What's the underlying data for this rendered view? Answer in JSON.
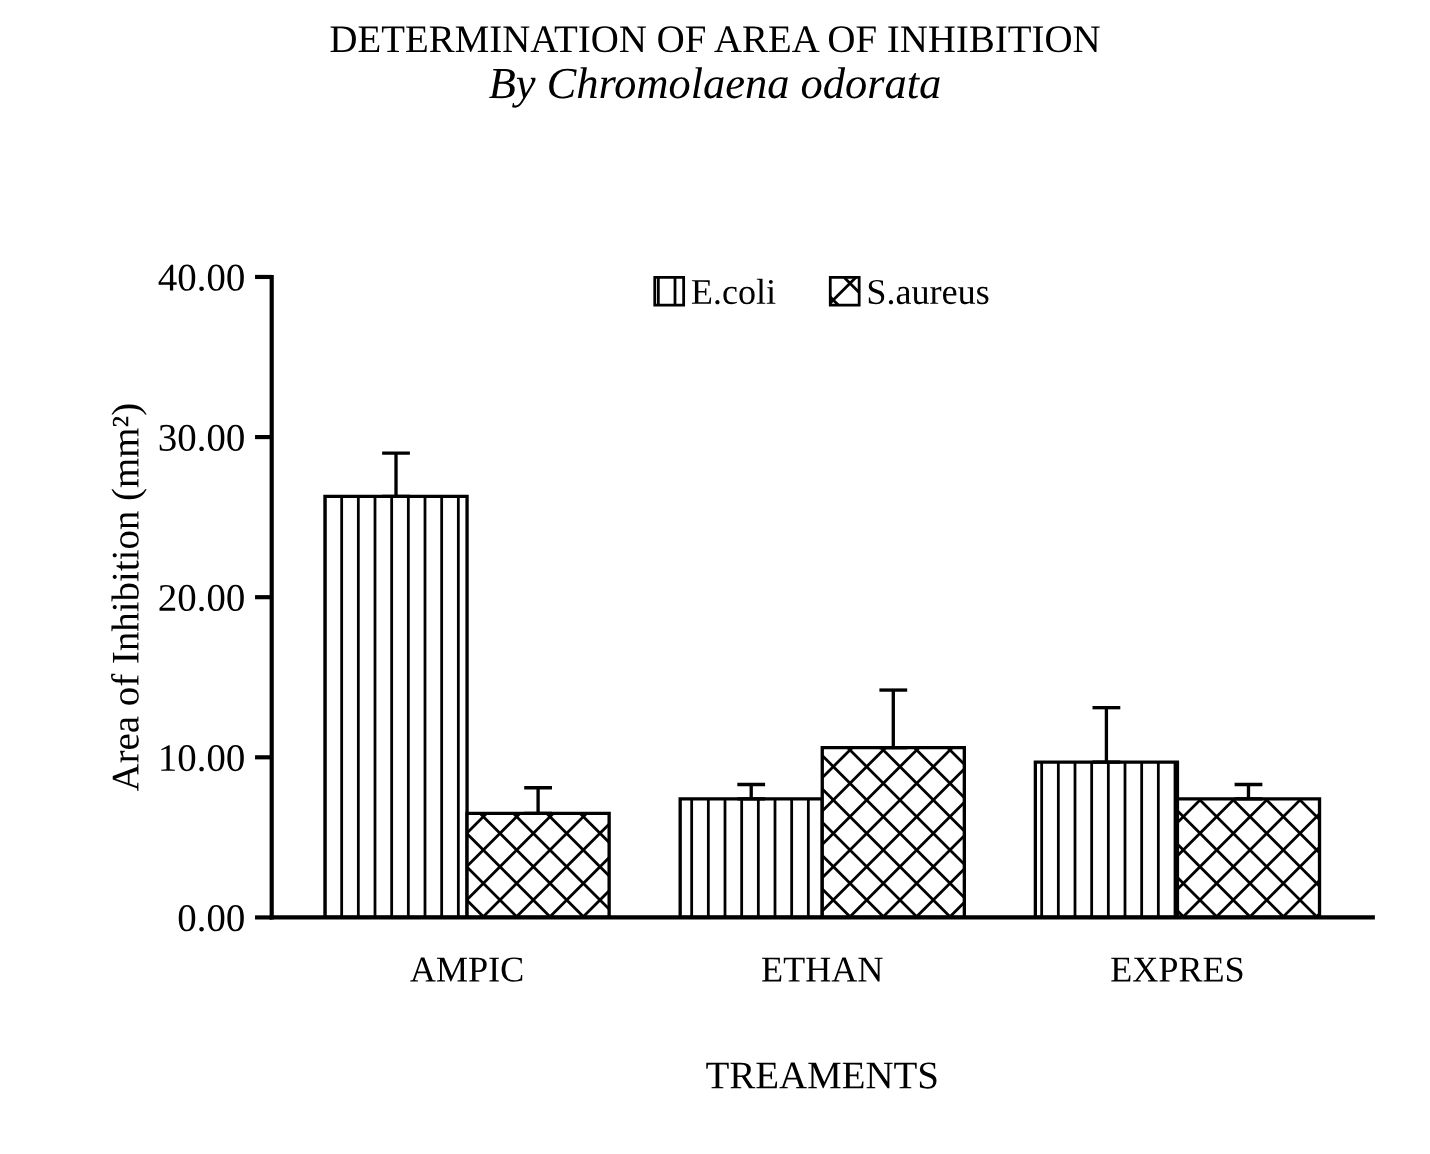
{
  "chart_data": {
    "type": "bar",
    "title": "DETERMINATION OF AREA OF INHIBITION",
    "subtitle": "By Chromolaena odorata",
    "xlabel": "TREAMENTS",
    "ylabel": "Area of Inhibition (mm²)",
    "categories": [
      "AMPIC",
      "ETHAN",
      "EXPRES"
    ],
    "series": [
      {
        "name": "E.coli",
        "color": "#000000",
        "values": [
          26.3,
          7.4,
          9.7
        ],
        "errors": [
          2.7,
          0.9,
          3.4
        ]
      },
      {
        "name": "S.aureus",
        "color": "#000000",
        "values": [
          6.5,
          10.6,
          7.4
        ],
        "errors": [
          1.6,
          3.6,
          0.9
        ]
      }
    ],
    "ylim": [
      0,
      40
    ],
    "yticks": [
      {
        "value": 0,
        "label": "0.00"
      },
      {
        "value": 10,
        "label": "10.00"
      },
      {
        "value": 20,
        "label": "20.00"
      },
      {
        "value": 30,
        "label": "30.00"
      },
      {
        "value": 40,
        "label": "40.00"
      }
    ],
    "grid": false,
    "legend": "top"
  }
}
